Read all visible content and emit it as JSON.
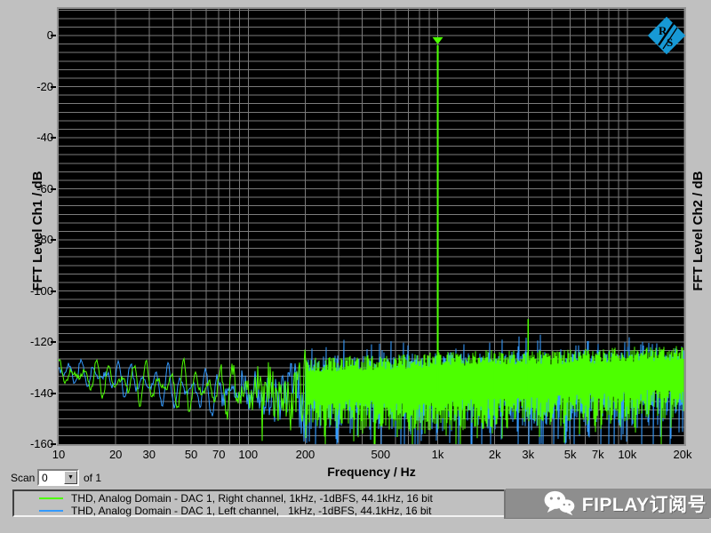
{
  "window": {
    "bg_color": "#c0c0c0"
  },
  "scan_control": {
    "label": "Scan",
    "value": "0",
    "suffix": "of 1"
  },
  "legend": {
    "items": [
      {
        "color": "#4dff00",
        "label": "THD, Analog Domain - DAC 1, Right channel, 1kHz, -1dBFS, 44.1kHz, 16 bit"
      },
      {
        "color": "#339aff",
        "label": "THD, Analog Domain - DAC 1, Left channel,   1kHz, -1dBFS, 44.1kHz, 16 bit"
      }
    ]
  },
  "watermark": {
    "text": "FIPLAY订阅号",
    "bar_color": "#8e8e8e",
    "text_color": "#ffffff"
  },
  "logo": {
    "letter_r": "R",
    "letter_s": "S",
    "color": "#1799d5"
  },
  "chart_data": {
    "type": "line",
    "title": "",
    "xlabel": "Frequency / Hz",
    "ylabel_left": "FFT Level Ch1 / dB",
    "ylabel_right": "FFT Level Ch2 / dB",
    "grid": {
      "on": true,
      "color": "#7b7b7b",
      "h_step_db": 3.3333,
      "v_lines": "log 1-9 per decade"
    },
    "x_axis": {
      "scale": "log",
      "min": 10,
      "max": 20000,
      "ticks": [
        {
          "f": 10,
          "label": "10"
        },
        {
          "f": 20,
          "label": "20"
        },
        {
          "f": 30,
          "label": "30"
        },
        {
          "f": 50,
          "label": "50"
        },
        {
          "f": 70,
          "label": "70"
        },
        {
          "f": 100,
          "label": "100"
        },
        {
          "f": 200,
          "label": "200"
        },
        {
          "f": 500,
          "label": "500"
        },
        {
          "f": 1000,
          "label": "1k"
        },
        {
          "f": 2000,
          "label": "2k"
        },
        {
          "f": 3000,
          "label": "3k"
        },
        {
          "f": 5000,
          "label": "5k"
        },
        {
          "f": 7000,
          "label": "7k"
        },
        {
          "f": 10000,
          "label": "10k"
        },
        {
          "f": 20000,
          "label": "20k"
        }
      ]
    },
    "y_axis": {
      "min": -160,
      "max": 10.4,
      "unit": "dB",
      "ticks": [
        {
          "db": 0,
          "label": "0"
        },
        {
          "db": -20,
          "label": "-20"
        },
        {
          "db": -40,
          "label": "-40"
        },
        {
          "db": -60,
          "label": "-60"
        },
        {
          "db": -80,
          "label": "-80"
        },
        {
          "db": -100,
          "label": "-100"
        },
        {
          "db": -120,
          "label": "-120"
        },
        {
          "db": -140,
          "label": "-140"
        },
        {
          "db": -160,
          "label": "-160"
        }
      ]
    },
    "noise_seed": 1337,
    "series": [
      {
        "name": "FFT Level Ch2 (Left channel)",
        "color": "#339aff",
        "draw_order": 1,
        "seed": 22,
        "phase": 2.7,
        "low_freq": {
          "f": [
            10,
            20,
            50,
            100,
            200
          ],
          "center_db": [
            -131,
            -134,
            -139,
            -140,
            -141
          ],
          "swing_db": [
            4,
            6,
            9,
            10,
            12
          ]
        },
        "band": {
          "f": [
            200,
            500,
            1000,
            2000,
            5000,
            10000,
            20000
          ],
          "top_db": [
            -130,
            -130,
            -129,
            -129,
            -128,
            -128,
            -127
          ],
          "bottom_db": [
            -141,
            -143,
            -144,
            -144,
            -143,
            -143,
            -142
          ],
          "top_jitter_db": 5,
          "bottom_jitter_db": 7,
          "up_spike_prob": 0.18,
          "up_spike_db": 7,
          "deep_spike_prob": 0.3,
          "deep_spike_db": 17
        },
        "tones": [
          {
            "f": 1000,
            "db": -1.1
          }
        ]
      },
      {
        "name": "FFT Level Ch1 (Right channel)",
        "color": "#4dff00",
        "draw_order": 2,
        "seed": 11,
        "phase": 1.2,
        "low_freq": {
          "f": [
            10,
            20,
            50,
            100,
            200
          ],
          "center_db": [
            -132,
            -135,
            -138,
            -139,
            -140
          ],
          "swing_db": [
            5,
            7,
            10,
            11,
            13
          ]
        },
        "band": {
          "f": [
            200,
            500,
            1000,
            2000,
            5000,
            10000,
            20000
          ],
          "top_db": [
            -129,
            -128,
            -127,
            -126,
            -126,
            -125,
            -124
          ],
          "bottom_db": [
            -147,
            -149,
            -149,
            -148,
            -146,
            -145,
            -144
          ],
          "top_jitter_db": 3,
          "bottom_jitter_db": 6,
          "deep_spike_prob": 0.13,
          "deep_spike_db": 13
        },
        "tones": [
          {
            "f": 1000,
            "db": -1
          },
          {
            "f": 2000,
            "db": -125
          },
          {
            "f": 3000,
            "db": -111
          }
        ],
        "marker": {
          "f": 1000,
          "db": -1,
          "shape": "triangle-down"
        }
      }
    ]
  }
}
